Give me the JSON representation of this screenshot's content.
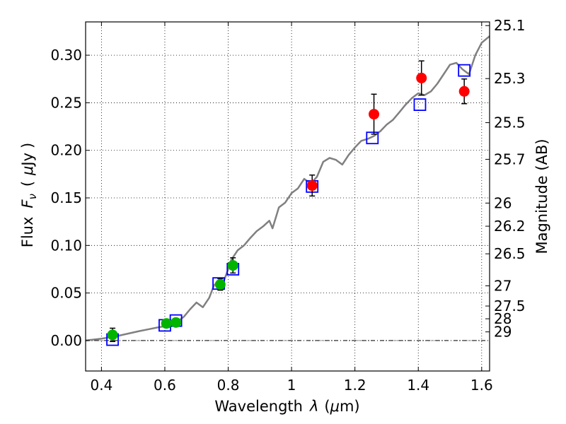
{
  "chart_data": {
    "type": "scatter",
    "xlabel_text": "Wavelength",
    "xlabel_symbol": "λ",
    "xlabel_unit_prefix": "(",
    "xlabel_unit_mu": "μ",
    "xlabel_unit_suffix": "m)",
    "ylabel_text": "Flux",
    "ylabel_symbol_F": "F",
    "ylabel_symbol_sub": "ν",
    "ylabel_unit_open": "(",
    "ylabel_unit_mu": "μ",
    "ylabel_unit_rest": "Jy",
    "ylabel_unit_close": ")",
    "y2label": "Magnitude (AB)",
    "xlim": [
      0.35,
      1.625
    ],
    "ylim": [
      -0.032,
      0.335
    ],
    "grid": true,
    "x_ticks": [
      0.4,
      0.6,
      0.8,
      1.0,
      1.2,
      1.4,
      1.6
    ],
    "x_tick_labels": [
      "0.4",
      "0.6",
      "0.8",
      "1",
      "1.2",
      "1.4",
      "1.6"
    ],
    "y_ticks": [
      0.0,
      0.05,
      0.1,
      0.15,
      0.2,
      0.25,
      0.3
    ],
    "y_tick_labels": [
      "0.00",
      "0.05",
      "0.10",
      "0.15",
      "0.20",
      "0.25",
      "0.30"
    ],
    "mag_ticks": [
      25.1,
      25.3,
      25.5,
      25.7,
      26,
      26.2,
      26.5,
      27,
      27.5,
      28,
      29
    ],
    "mag_tick_labels": [
      "25.1",
      "25.3",
      "25.5",
      "25.7",
      "26",
      "26.2",
      "26.5",
      "27",
      "27.5",
      "28",
      "29"
    ],
    "colors": {
      "sed_line": "#808080",
      "green_points": "#00b400",
      "red_points": "#ff0000",
      "model_squares": "#0000ff",
      "errorbar": "#000000"
    },
    "series": [
      {
        "kind": "line",
        "x": [
          0.35,
          0.4,
          0.44,
          0.48,
          0.52,
          0.55,
          0.58,
          0.6,
          0.62,
          0.64,
          0.66,
          0.68,
          0.7,
          0.72,
          0.74,
          0.755,
          0.77,
          0.78,
          0.79,
          0.8,
          0.81,
          0.82,
          0.83,
          0.85,
          0.87,
          0.89,
          0.91,
          0.93,
          0.94,
          0.96,
          0.98,
          1.0,
          1.02,
          1.04,
          1.06,
          1.08,
          1.1,
          1.12,
          1.14,
          1.16,
          1.18,
          1.2,
          1.22,
          1.24,
          1.26,
          1.28,
          1.3,
          1.32,
          1.34,
          1.36,
          1.38,
          1.4,
          1.42,
          1.44,
          1.46,
          1.48,
          1.5,
          1.52,
          1.54,
          1.56,
          1.58,
          1.6,
          1.625
        ],
        "y": [
          0.0,
          0.002,
          0.004,
          0.007,
          0.01,
          0.012,
          0.014,
          0.015,
          0.016,
          0.02,
          0.025,
          0.033,
          0.04,
          0.035,
          0.045,
          0.058,
          0.063,
          0.058,
          0.066,
          0.075,
          0.085,
          0.09,
          0.095,
          0.1,
          0.108,
          0.115,
          0.12,
          0.126,
          0.118,
          0.14,
          0.145,
          0.155,
          0.16,
          0.17,
          0.165,
          0.172,
          0.188,
          0.192,
          0.19,
          0.185,
          0.195,
          0.203,
          0.21,
          0.212,
          0.215,
          0.22,
          0.227,
          0.232,
          0.24,
          0.248,
          0.255,
          0.26,
          0.258,
          0.262,
          0.27,
          0.28,
          0.29,
          0.292,
          0.285,
          0.28,
          0.3,
          0.313,
          0.32
        ]
      },
      {
        "kind": "points",
        "marker": "circle",
        "x": [
          0.435,
          0.605,
          0.635,
          0.775,
          0.815
        ],
        "y": [
          0.006,
          0.018,
          0.019,
          0.059,
          0.079
        ],
        "err": [
          0.007,
          0.004,
          0.004,
          0.006,
          0.008
        ]
      },
      {
        "kind": "points",
        "marker": "circle",
        "x": [
          1.065,
          1.26,
          1.41,
          1.545
        ],
        "y": [
          0.163,
          0.238,
          0.276,
          0.262
        ],
        "err": [
          0.011,
          0.021,
          0.018,
          0.013
        ]
      },
      {
        "kind": "points",
        "marker": "square",
        "x": [
          0.435,
          0.6,
          0.635,
          0.77,
          0.815,
          1.065,
          1.255,
          1.405,
          1.545
        ],
        "y": [
          0.001,
          0.016,
          0.021,
          0.06,
          0.075,
          0.162,
          0.213,
          0.248,
          0.284
        ]
      }
    ]
  }
}
